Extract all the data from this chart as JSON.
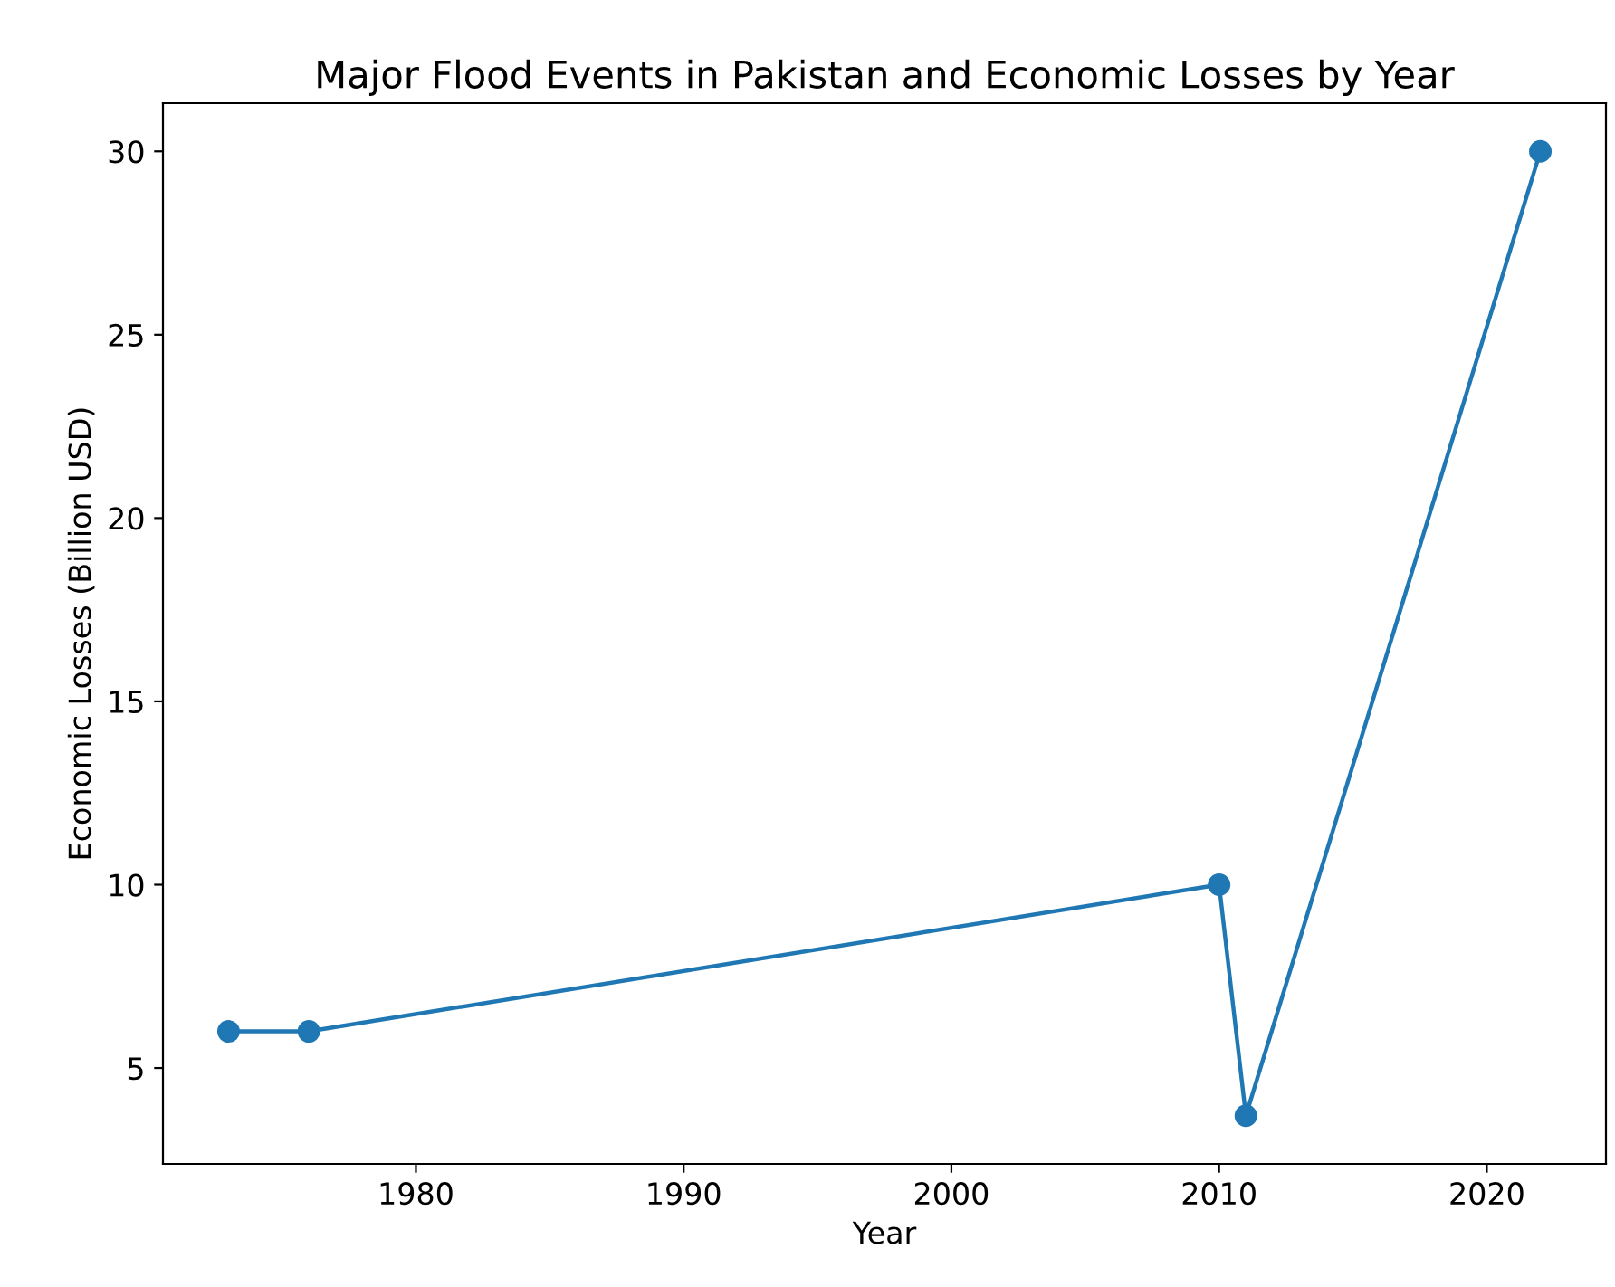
{
  "chart_data": {
    "type": "line",
    "title": "Major Flood Events in Pakistan and Economic Losses by Year",
    "xlabel": "Year",
    "ylabel": "Economic Losses (Billion USD)",
    "x": [
      1973,
      1976,
      2010,
      2011,
      2022
    ],
    "series": [
      {
        "color": "#1f77b4",
        "values": [
          6,
          6,
          10,
          3.7,
          30
        ]
      }
    ],
    "xlim": [
      1970.55,
      2024.45
    ],
    "xticks": [
      1980,
      1990,
      2000,
      2010,
      2020
    ],
    "ylim": [
      2.385,
      31.315
    ],
    "yticks": [
      5,
      10,
      15,
      20,
      25,
      30
    ],
    "marker": "circle",
    "line_style": "solid",
    "grid": false,
    "legend": false
  }
}
